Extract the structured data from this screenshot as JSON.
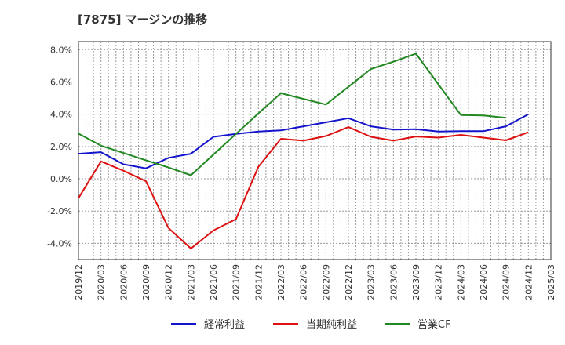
{
  "title": "[7875]  マージンの推移",
  "chart_data": {
    "type": "line",
    "title": "[7875]  マージンの推移",
    "x": [
      "2019/12",
      "2020/03",
      "2020/06",
      "2020/09",
      "2020/12",
      "2021/03",
      "2021/06",
      "2021/09",
      "2021/12",
      "2022/03",
      "2022/06",
      "2022/09",
      "2022/12",
      "2023/03",
      "2023/06",
      "2023/09",
      "2023/12",
      "2024/03",
      "2024/06",
      "2024/09",
      "2024/12",
      "2025/03"
    ],
    "y_ticks": [
      "8.0%",
      "6.0%",
      "4.0%",
      "2.0%",
      "0.0%",
      "-2.0%",
      "-4.0%"
    ],
    "ylim": [
      -5.0,
      8.5
    ],
    "grid": true,
    "legend_position": "bottom",
    "series": [
      {
        "name": "経常利益",
        "color": "#1414cc",
        "values": [
          1.55,
          1.65,
          0.9,
          0.65,
          1.3,
          1.55,
          2.6,
          2.78,
          2.93,
          3.0,
          3.25,
          3.5,
          3.75,
          3.25,
          3.05,
          3.07,
          2.93,
          2.95,
          2.95,
          3.25,
          4.0,
          null
        ]
      },
      {
        "name": "当期純利益",
        "color": "#dd1111",
        "values": [
          -1.2,
          1.08,
          0.5,
          -0.15,
          -3.05,
          -4.32,
          -3.2,
          -2.5,
          0.75,
          2.48,
          2.36,
          2.65,
          3.2,
          2.6,
          2.36,
          2.62,
          2.55,
          2.72,
          2.55,
          2.38,
          2.88,
          null
        ]
      },
      {
        "name": "営業CF",
        "color": "#228822",
        "values": [
          2.8,
          2.05,
          1.6,
          1.15,
          0.7,
          0.22,
          1.5,
          2.78,
          4.05,
          5.3,
          4.95,
          4.6,
          5.7,
          6.8,
          7.25,
          7.75,
          5.85,
          3.95,
          3.92,
          3.78,
          null,
          null
        ]
      }
    ]
  }
}
